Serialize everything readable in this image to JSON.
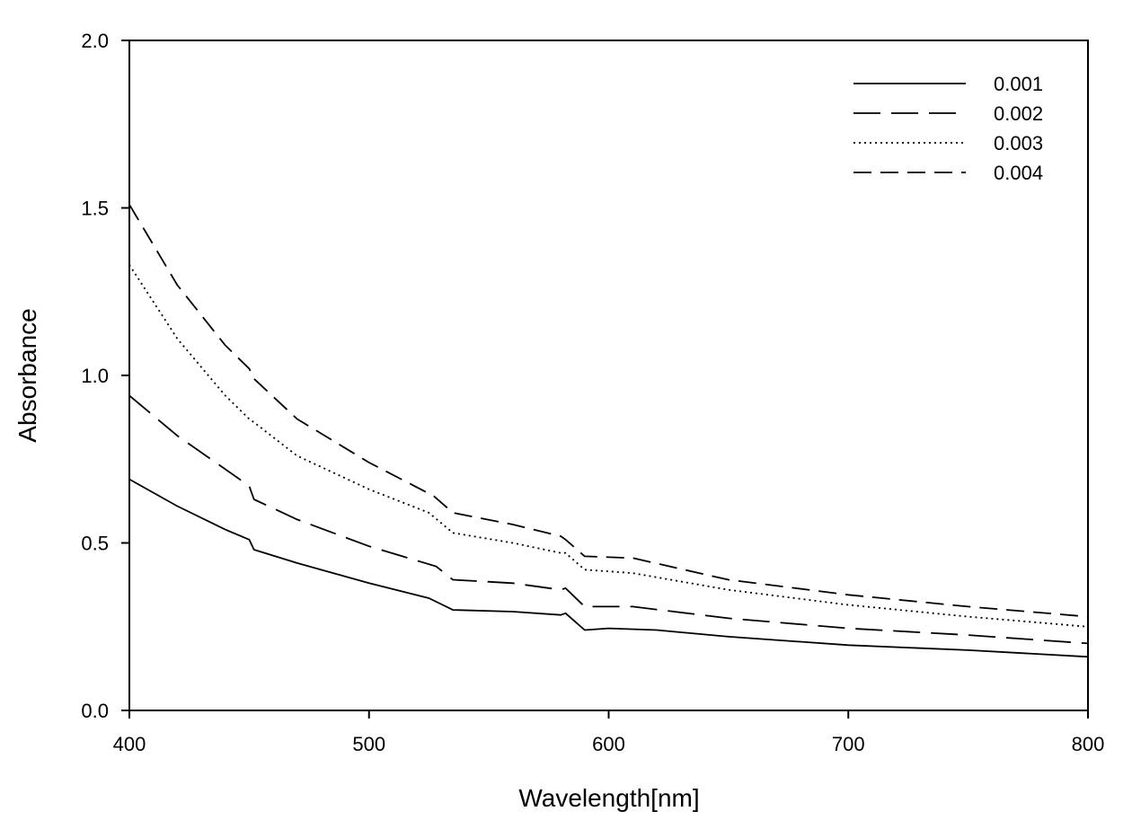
{
  "chart_data": {
    "type": "line",
    "xlabel": "Wavelength[nm]",
    "ylabel": "Absorbance",
    "xlim": [
      400,
      800
    ],
    "ylim": [
      0.0,
      2.0
    ],
    "xticks": [
      400,
      500,
      600,
      700,
      800
    ],
    "xtick_labels": [
      "400",
      "500",
      "600",
      "700",
      "800"
    ],
    "yticks": [
      0.0,
      0.5,
      1.0,
      1.5,
      2.0
    ],
    "ytick_labels": [
      "0.0",
      "0.5",
      "1.0",
      "1.5",
      "2.0"
    ],
    "grid": false,
    "legend_position": "top-right",
    "line_color": "#000000",
    "series": [
      {
        "name": "0.001",
        "line_style": "solid",
        "points": [
          [
            400,
            0.69
          ],
          [
            420,
            0.61
          ],
          [
            440,
            0.54
          ],
          [
            450,
            0.51
          ],
          [
            452,
            0.48
          ],
          [
            470,
            0.44
          ],
          [
            500,
            0.38
          ],
          [
            525,
            0.335
          ],
          [
            535,
            0.3
          ],
          [
            560,
            0.295
          ],
          [
            580,
            0.285
          ],
          [
            582,
            0.29
          ],
          [
            590,
            0.24
          ],
          [
            600,
            0.245
          ],
          [
            620,
            0.24
          ],
          [
            650,
            0.22
          ],
          [
            700,
            0.195
          ],
          [
            750,
            0.18
          ],
          [
            800,
            0.16
          ]
        ]
      },
      {
        "name": "0.002",
        "line_style": "long-dash",
        "points": [
          [
            400,
            0.94
          ],
          [
            420,
            0.82
          ],
          [
            440,
            0.72
          ],
          [
            450,
            0.67
          ],
          [
            452,
            0.63
          ],
          [
            470,
            0.57
          ],
          [
            500,
            0.49
          ],
          [
            528,
            0.43
          ],
          [
            535,
            0.39
          ],
          [
            560,
            0.38
          ],
          [
            580,
            0.36
          ],
          [
            582,
            0.365
          ],
          [
            590,
            0.31
          ],
          [
            610,
            0.31
          ],
          [
            650,
            0.275
          ],
          [
            700,
            0.245
          ],
          [
            750,
            0.225
          ],
          [
            800,
            0.2
          ]
        ]
      },
      {
        "name": "0.003",
        "line_style": "dotted",
        "points": [
          [
            400,
            1.33
          ],
          [
            420,
            1.11
          ],
          [
            440,
            0.94
          ],
          [
            450,
            0.87
          ],
          [
            452,
            0.86
          ],
          [
            470,
            0.76
          ],
          [
            500,
            0.66
          ],
          [
            525,
            0.59
          ],
          [
            535,
            0.53
          ],
          [
            560,
            0.5
          ],
          [
            580,
            0.47
          ],
          [
            582,
            0.47
          ],
          [
            590,
            0.42
          ],
          [
            610,
            0.41
          ],
          [
            650,
            0.36
          ],
          [
            700,
            0.315
          ],
          [
            750,
            0.28
          ],
          [
            800,
            0.25
          ]
        ]
      },
      {
        "name": "0.004",
        "line_style": "dash",
        "points": [
          [
            400,
            1.51
          ],
          [
            420,
            1.27
          ],
          [
            440,
            1.09
          ],
          [
            450,
            1.02
          ],
          [
            452,
            0.99
          ],
          [
            470,
            0.87
          ],
          [
            500,
            0.74
          ],
          [
            527,
            0.64
          ],
          [
            535,
            0.59
          ],
          [
            560,
            0.555
          ],
          [
            580,
            0.52
          ],
          [
            582,
            0.51
          ],
          [
            590,
            0.46
          ],
          [
            610,
            0.455
          ],
          [
            650,
            0.39
          ],
          [
            700,
            0.345
          ],
          [
            750,
            0.31
          ],
          [
            800,
            0.28
          ]
        ]
      }
    ]
  }
}
